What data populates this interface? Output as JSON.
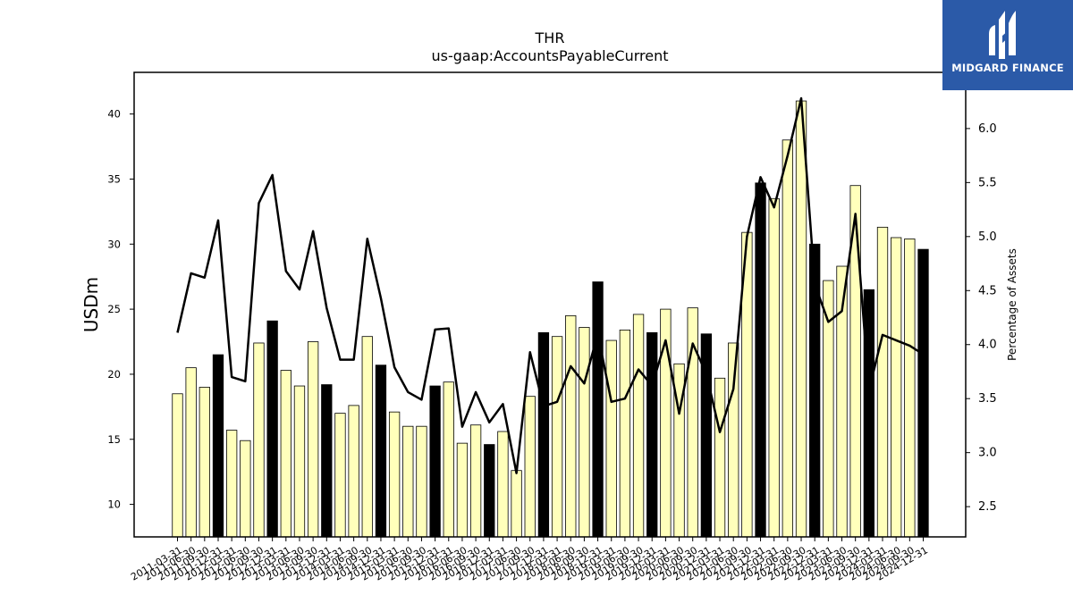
{
  "logo": {
    "text": "MIDGARD FINANCE",
    "bg": "#2b5aa8"
  },
  "chart_data": {
    "type": "bar",
    "title": "THR",
    "subtitle": "us-gaap:AccountsPayableCurrent",
    "ylabel": "USDm",
    "y2label": "Percentage of Assets",
    "ylim": [
      7.5,
      43.2
    ],
    "y2lim": [
      2.22,
      6.52
    ],
    "yticks": [
      10,
      15,
      20,
      25,
      30,
      35,
      40
    ],
    "y2ticks": [
      2.5,
      3.0,
      3.5,
      4.0,
      4.5,
      5.0,
      5.5,
      6.0
    ],
    "categories": [
      "2011-03-31",
      "2011-06-30",
      "2011-09-30",
      "2011-12-31",
      "2012-03-31",
      "2012-06-30",
      "2012-09-30",
      "2012-12-31",
      "2013-03-31",
      "2013-06-30",
      "2013-09-30",
      "2013-12-31",
      "2014-03-31",
      "2014-06-30",
      "2014-09-30",
      "2014-12-31",
      "2015-03-31",
      "2015-06-30",
      "2015-09-30",
      "2015-12-31",
      "2016-03-31",
      "2016-06-30",
      "2016-09-30",
      "2016-12-31",
      "2017-03-31",
      "2017-06-30",
      "2017-09-30",
      "2017-12-31",
      "2018-03-31",
      "2018-06-30",
      "2018-09-30",
      "2018-12-31",
      "2019-03-31",
      "2019-06-30",
      "2019-09-30",
      "2019-12-31",
      "2020-03-31",
      "2020-06-30",
      "2020-09-30",
      "2020-12-31",
      "2021-03-31",
      "2021-06-30",
      "2021-09-30",
      "2021-12-31",
      "2022-03-31",
      "2022-06-30",
      "2022-09-30",
      "2022-12-31",
      "2023-03-31",
      "2023-06-30",
      "2023-09-30",
      "2023-12-31",
      "2024-03-31",
      "2024-06-30",
      "2024-09-30",
      "2024-12-31"
    ],
    "series": [
      {
        "type": "bar",
        "values": [
          18.5,
          20.5,
          19.0,
          21.5,
          15.7,
          14.9,
          22.4,
          24.1,
          20.3,
          19.1,
          22.5,
          19.2,
          17.0,
          17.6,
          22.9,
          20.7,
          17.1,
          16.0,
          16.0,
          19.1,
          19.4,
          14.7,
          16.1,
          14.6,
          15.6,
          12.6,
          18.3,
          23.2,
          22.9,
          24.5,
          23.6,
          27.1,
          22.6,
          23.4,
          24.6,
          23.2,
          25.0,
          20.8,
          25.1,
          23.1,
          19.7,
          22.4,
          30.9,
          34.7,
          33.5,
          38.0,
          41.0,
          30.0,
          27.2,
          28.3,
          34.5,
          26.5,
          31.3,
          30.5,
          30.4,
          29.6
        ],
        "highlight": [
          false,
          false,
          false,
          true,
          false,
          false,
          false,
          true,
          false,
          false,
          false,
          true,
          false,
          false,
          false,
          true,
          false,
          false,
          false,
          true,
          false,
          false,
          false,
          true,
          false,
          false,
          false,
          true,
          false,
          false,
          false,
          true,
          false,
          false,
          false,
          true,
          false,
          false,
          false,
          true,
          false,
          false,
          false,
          true,
          false,
          false,
          false,
          true,
          false,
          false,
          false,
          true,
          false,
          false,
          false,
          true
        ],
        "color": "#ffffbb",
        "highlight_color": "#000000"
      },
      {
        "type": "line",
        "axis": "right",
        "values": [
          4.11,
          4.66,
          4.62,
          5.15,
          3.7,
          3.66,
          5.31,
          5.57,
          4.68,
          4.51,
          5.05,
          4.34,
          3.86,
          3.86,
          4.98,
          4.43,
          3.79,
          3.56,
          3.49,
          4.14,
          4.15,
          3.24,
          3.56,
          3.28,
          3.45,
          2.81,
          3.93,
          3.43,
          3.47,
          3.8,
          3.64,
          4.1,
          3.47,
          3.5,
          3.77,
          3.62,
          4.04,
          3.36,
          4.01,
          3.73,
          3.19,
          3.59,
          5.0,
          5.55,
          5.27,
          5.75,
          6.28,
          4.56,
          4.21,
          4.31,
          5.21,
          3.58,
          4.09,
          4.04,
          3.99,
          3.91
        ],
        "color": "#000000"
      }
    ],
    "grid": false,
    "legend": "none"
  }
}
